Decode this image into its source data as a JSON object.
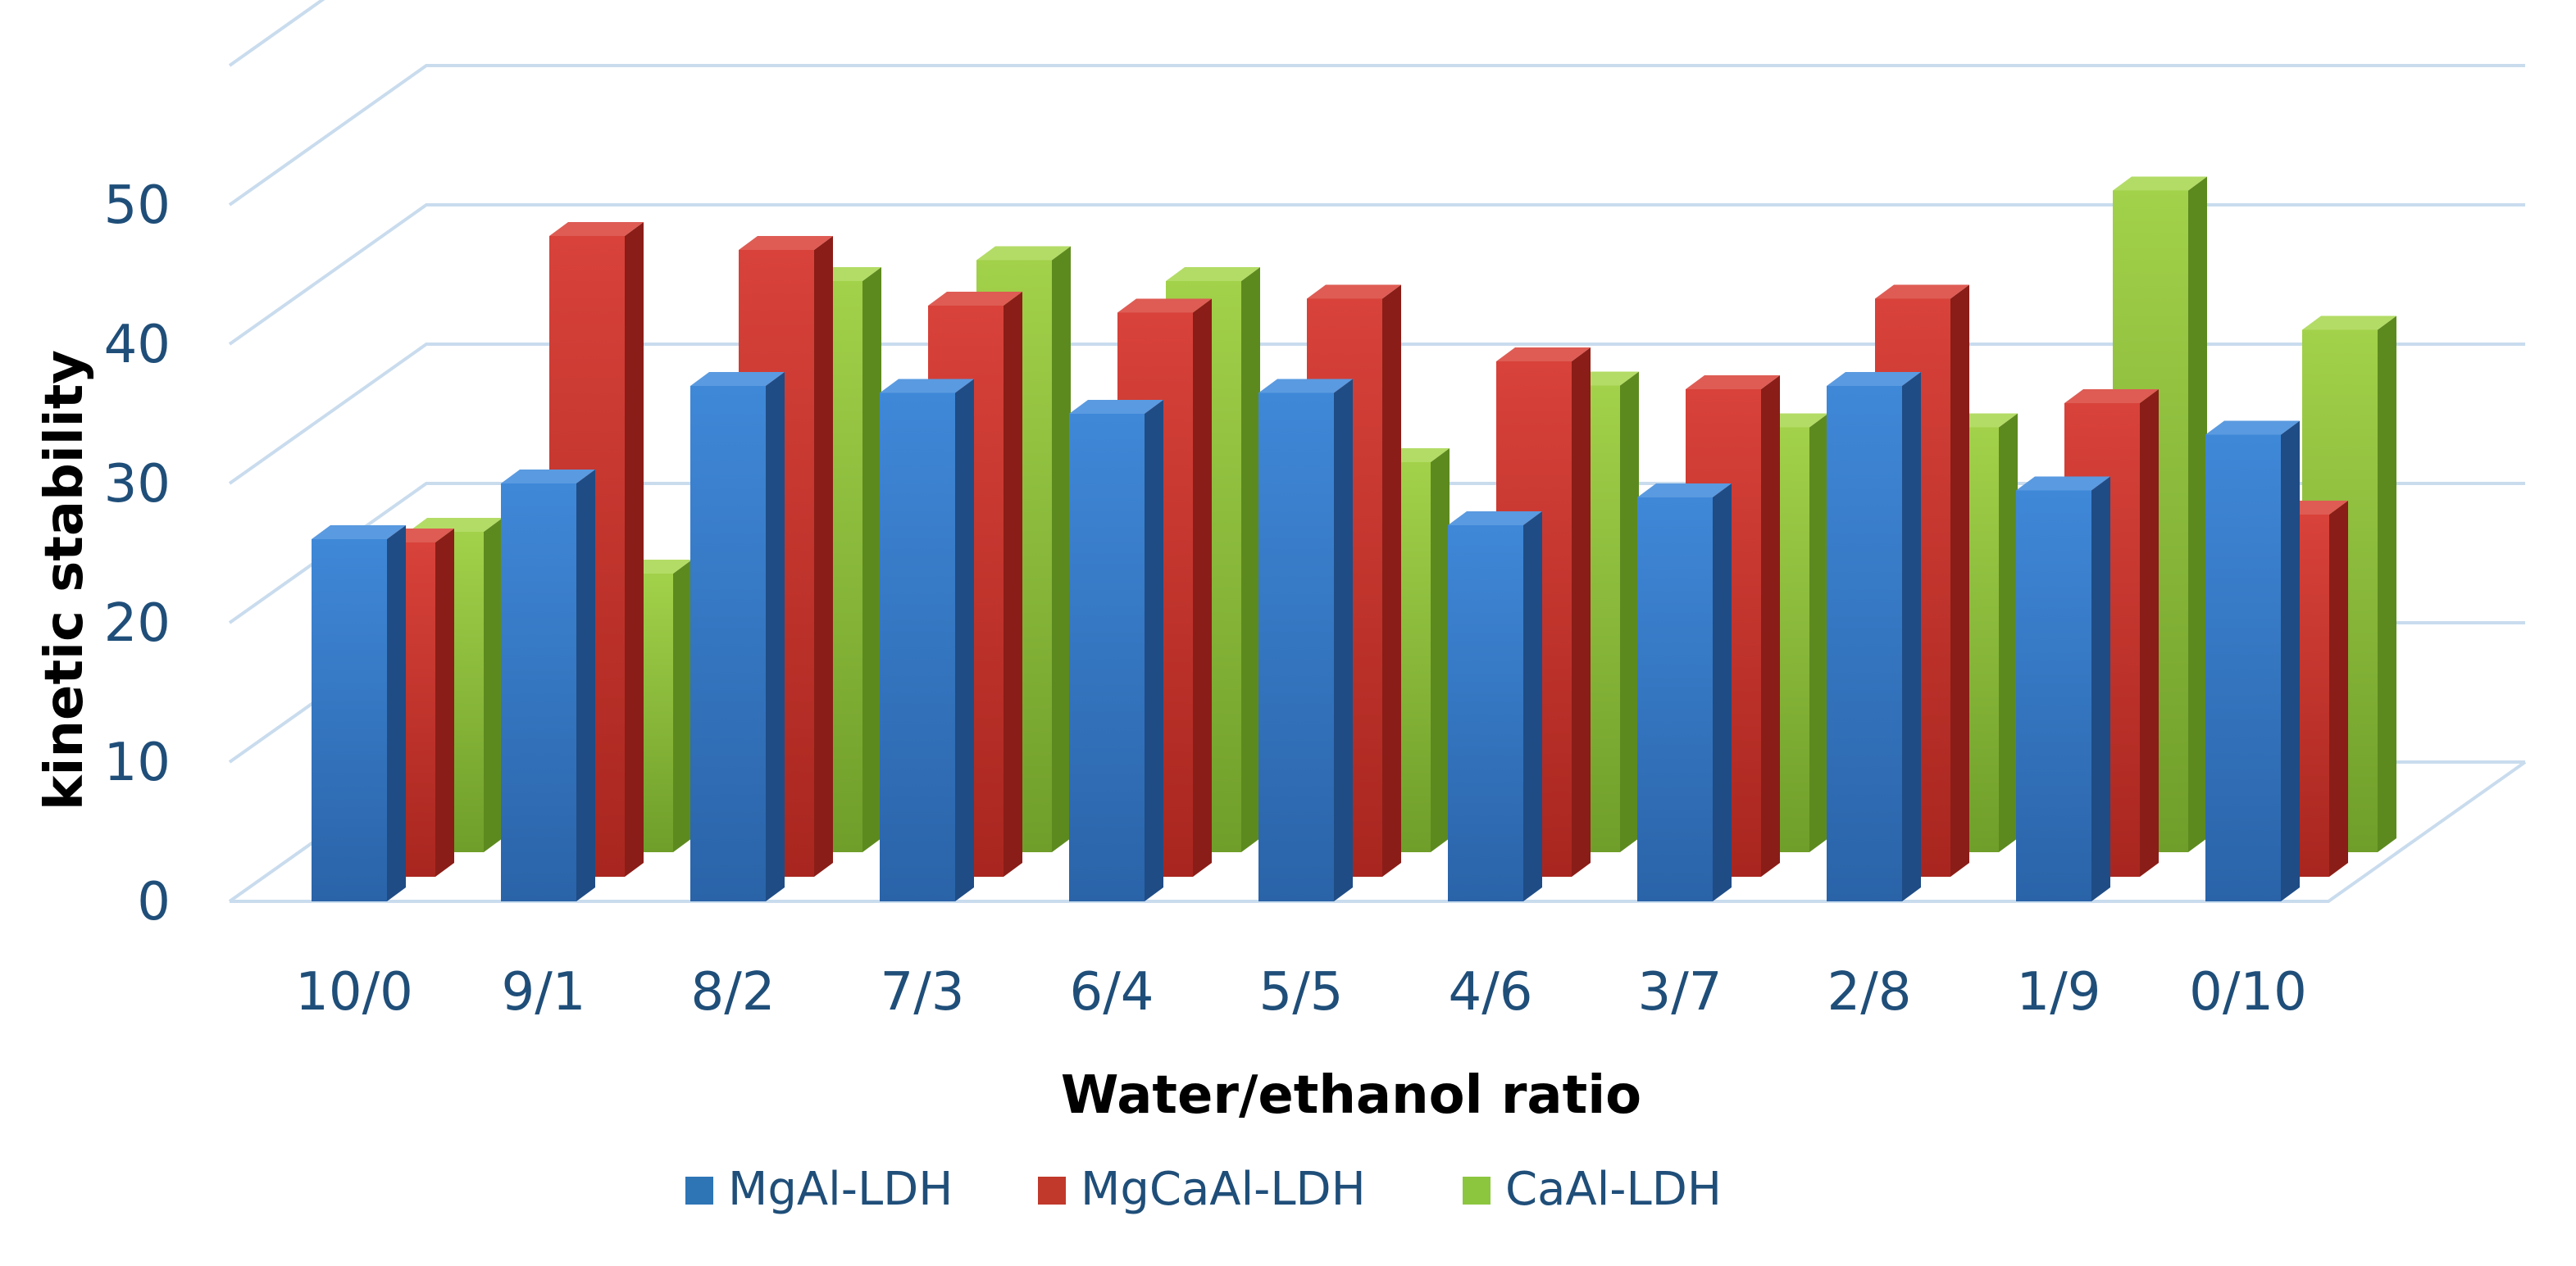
{
  "chart_data": {
    "type": "bar",
    "style": "3d-clustered-depth",
    "categories": [
      "10/0",
      "9/1",
      "8/2",
      "7/3",
      "6/4",
      "5/5",
      "4/6",
      "3/7",
      "2/8",
      "1/9",
      "0/10"
    ],
    "series": [
      {
        "name": "MgAl-LDH",
        "color": "#2e75b6",
        "values": [
          26,
          30,
          37,
          36.5,
          35,
          36.5,
          27,
          29,
          37,
          29.5,
          33.5
        ]
      },
      {
        "name": "MgCaAl-LDH",
        "color": "#c0392b",
        "values": [
          24,
          46,
          45,
          41,
          40.5,
          41.5,
          37,
          35,
          41.5,
          34,
          26
        ]
      },
      {
        "name": "CaAl-LDH",
        "color": "#8cc63f",
        "values": [
          23,
          20,
          41,
          42.5,
          41,
          28,
          33.5,
          30.5,
          30.5,
          47.5,
          37.5
        ]
      }
    ],
    "xlabel": "Water/ethanol ratio",
    "ylabel": "kinetic stability",
    "ylim": [
      0,
      60
    ],
    "yticks": [
      0,
      10,
      20,
      30,
      40,
      50
    ],
    "grid": true,
    "legend": "bottom"
  }
}
